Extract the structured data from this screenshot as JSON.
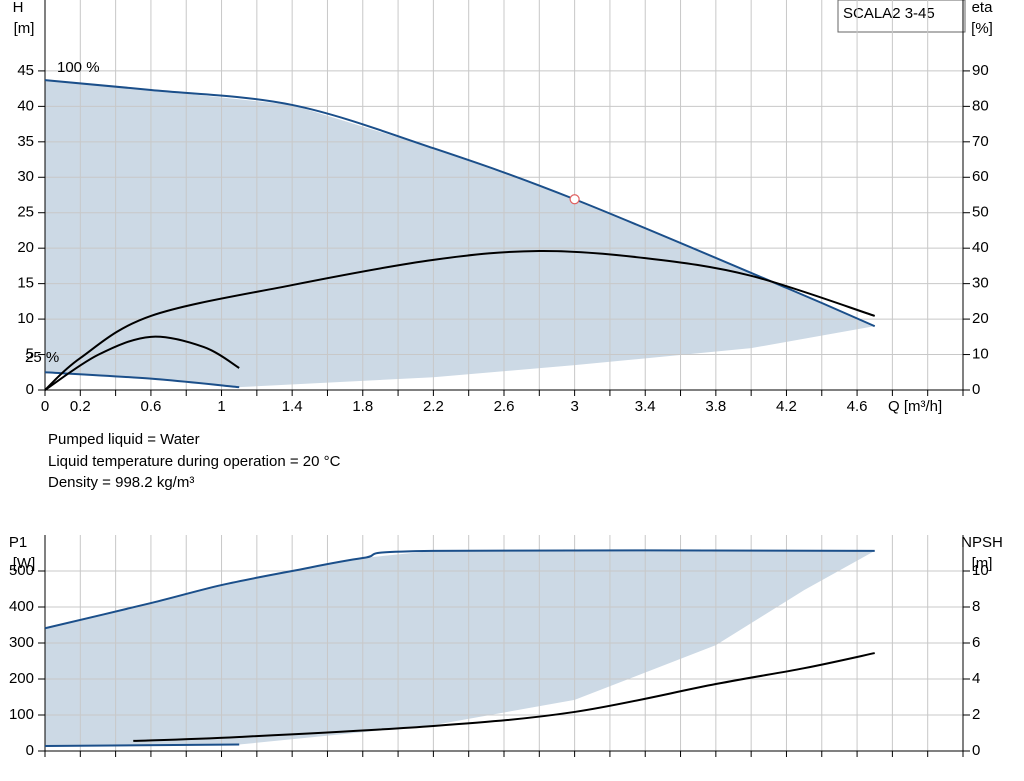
{
  "product": "SCALA2 3-45",
  "notes": [
    "Pumped liquid = Water",
    "Liquid temperature during operation = 20 °C",
    "Density = 998.2 kg/m³"
  ],
  "chart_data": [
    {
      "type": "line",
      "y_label": "H",
      "y_unit": "[m]",
      "y2_label": "eta",
      "y2_unit": "[%]",
      "x_label": "Q [m³/h]",
      "xlim": [
        0,
        5.2
      ],
      "xticks": [
        0,
        0.2,
        0.6,
        1.0,
        1.4,
        1.8,
        2.2,
        2.6,
        3.0,
        3.4,
        3.8,
        4.2,
        4.6
      ],
      "xminorticks": [
        0.4,
        0.8,
        1.2,
        1.6,
        2.0,
        2.4,
        2.8,
        3.2,
        3.6,
        4.0,
        4.4,
        4.8,
        5.0,
        5.2
      ],
      "ylim": [
        0,
        55
      ],
      "yticks": [
        0,
        5,
        10,
        15,
        20,
        25,
        30,
        35,
        40,
        45
      ],
      "y2lim": [
        0,
        110
      ],
      "y2ticks": [
        0,
        10,
        20,
        30,
        40,
        50,
        60,
        70,
        80,
        90
      ],
      "grid": true,
      "series": [
        {
          "name": "100 %",
          "color": "#1b4f8a",
          "x": [
            0,
            0.6,
            1.4,
            2.2,
            3.0,
            4.2,
            4.7
          ],
          "values": [
            43.7,
            42.3,
            40.2,
            34.1,
            26.9,
            14.4,
            9.0
          ]
        },
        {
          "name": "25 %",
          "color": "#1b4f8a",
          "x": [
            0,
            0.6,
            1.1
          ],
          "values": [
            2.5,
            1.6,
            0.4
          ]
        },
        {
          "color": "#000000",
          "axis": "y2",
          "x": [
            0,
            0.2,
            0.6,
            1.4,
            2.2,
            2.8,
            3.4,
            4.0,
            4.7
          ],
          "values": [
            0,
            9.0,
            20.9,
            29.6,
            36.7,
            39.2,
            37.2,
            32.2,
            20.9
          ]
        },
        {
          "color": "#000000",
          "axis": "y2",
          "x": [
            0,
            0.3,
            0.6,
            0.9,
            1.1
          ],
          "values": [
            0,
            9.9,
            15.0,
            12.1,
            6.2
          ]
        }
      ],
      "area": {
        "color": "#ccd9e5",
        "x": [
          1.1,
          2.2,
          3.0,
          4.0,
          4.7
        ],
        "values": [
          0.4,
          1.8,
          3.5,
          5.9,
          9.0
        ]
      },
      "operating_point": {
        "x": 3.0,
        "y": 26.9,
        "color": "#e06060"
      }
    },
    {
      "type": "line",
      "y_label": "P1",
      "y_unit": "[W]",
      "y2_label": "NPSH",
      "y2_unit": "[m]",
      "xlim": [
        0,
        5.2
      ],
      "xticks": [
        0,
        0.2,
        0.6,
        1.0,
        1.4,
        1.8,
        2.2,
        2.6,
        3.0,
        3.4,
        3.8,
        4.2,
        4.6
      ],
      "xminorticks": [
        0.4,
        0.8,
        1.2,
        1.6,
        2.0,
        2.4,
        2.8,
        3.2,
        3.6,
        4.0,
        4.4,
        4.8,
        5.0,
        5.2
      ],
      "ylim": [
        0,
        600
      ],
      "yticks": [
        0,
        100,
        200,
        300,
        400,
        500
      ],
      "y2lim": [
        0,
        12
      ],
      "y2ticks": [
        0,
        2,
        4,
        6,
        8,
        10
      ],
      "grid": true,
      "series": [
        {
          "color": "#1b4f8a",
          "x": [
            0,
            0.6,
            1.0,
            1.4,
            1.8,
            2.2,
            4.7
          ],
          "values": [
            341,
            411,
            461,
            500,
            536,
            556,
            556
          ]
        },
        {
          "color": "#1b4f8a",
          "x": [
            0,
            1.1
          ],
          "values": [
            14,
            18
          ]
        },
        {
          "color": "#000000",
          "axis": "y2",
          "x": [
            0.5,
            1.1,
            2.2,
            3.0,
            3.8,
            4.3,
            4.7
          ],
          "values": [
            0.56,
            0.78,
            1.39,
            2.17,
            3.72,
            4.6,
            5.44
          ]
        }
      ],
      "area": {
        "color": "#ccd9e5",
        "x": [
          1.1,
          2.2,
          3.0,
          3.8,
          4.3,
          4.7
        ],
        "values": [
          18,
          72,
          142,
          294,
          447,
          556
        ]
      }
    }
  ]
}
